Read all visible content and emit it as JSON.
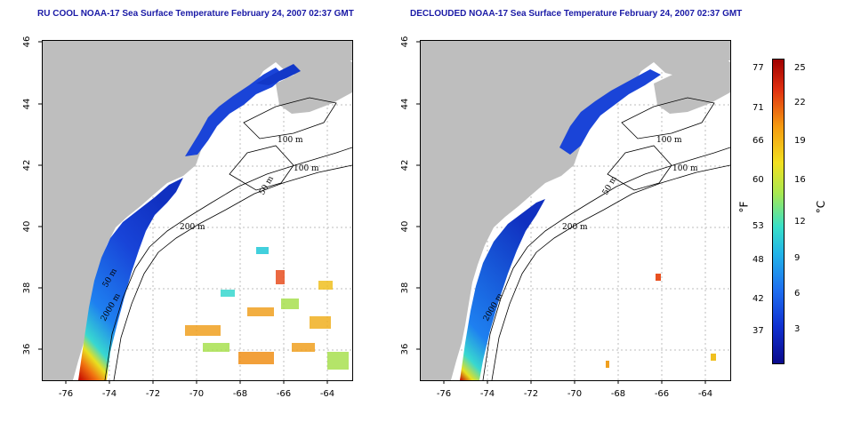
{
  "titles": {
    "left": "RU COOL NOAA-17 Sea Surface Temperature February 24, 2007 02:37 GMT",
    "right": "DECLOUDED NOAA-17 Sea Surface Temperature February 24, 2007 02:37 GMT"
  },
  "x_ticks": [
    "-76",
    "-74",
    "-72",
    "-70",
    "-68",
    "-66",
    "-64"
  ],
  "y_ticks": [
    "46",
    "44",
    "42",
    "40",
    "38",
    "36"
  ],
  "contour_labels": {
    "left": [
      "100 m",
      "100 m",
      "50 m",
      "200 m",
      "50 m",
      "2000 m"
    ],
    "right": [
      "100 m",
      "100 m",
      "50 m",
      "200 m",
      "2000 m"
    ]
  },
  "colorbar": {
    "fahrenheit_label": "°F",
    "celsius_label": "°C",
    "fahrenheit_ticks": [
      "77",
      "71",
      "66",
      "60",
      "53",
      "48",
      "42",
      "37"
    ],
    "celsius_ticks": [
      "25",
      "22",
      "19",
      "16",
      "12",
      "9",
      "6",
      "3"
    ],
    "colors": [
      "#0a0a8c",
      "#1e6ef0",
      "#38e0c8",
      "#f2e020",
      "#e03010",
      "#a00000"
    ]
  },
  "map_colors": {
    "land": "#bebebe",
    "cloud_or_no_data": "#ffffff"
  }
}
